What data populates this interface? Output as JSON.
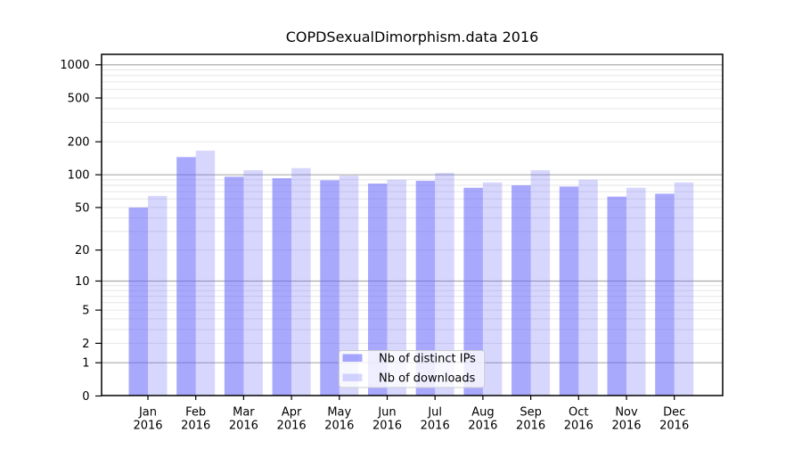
{
  "title": "COPDSexualDimorphism.data 2016",
  "chart_data": {
    "type": "bar",
    "title": "COPDSexualDimorphism.data 2016",
    "categories": [
      "Jan",
      "Feb",
      "Mar",
      "Apr",
      "May",
      "Jun",
      "Jul",
      "Aug",
      "Sep",
      "Oct",
      "Nov",
      "Dec"
    ],
    "year": "2016",
    "series": [
      {
        "name": "Nb of distinct IPs",
        "color": "#6060fa",
        "opacity": 0.55,
        "values": [
          50,
          145,
          96,
          93,
          89,
          83,
          88,
          76,
          80,
          78,
          63,
          67
        ]
      },
      {
        "name": "Nb of downloads",
        "color": "#6060fa",
        "opacity": 0.25,
        "values": [
          64,
          166,
          110,
          115,
          98,
          90,
          104,
          85,
          110,
          90,
          76,
          85
        ]
      }
    ],
    "y_axis": {
      "scale": "log10(1+x)",
      "ticks": [
        0,
        1,
        2,
        5,
        10,
        20,
        50,
        100,
        200,
        500,
        1000
      ],
      "ylim": [
        0,
        1250
      ]
    },
    "x_axis": {
      "label_line2": "2016"
    },
    "legend": {
      "position": "lower center",
      "entries": [
        "Nb of distinct IPs",
        "Nb of downloads"
      ]
    },
    "grid": {
      "minor_color": "#e6e6e6",
      "major_color": "#ababab"
    },
    "colors": {
      "background": "#ffffff",
      "axis": "#000000"
    }
  }
}
